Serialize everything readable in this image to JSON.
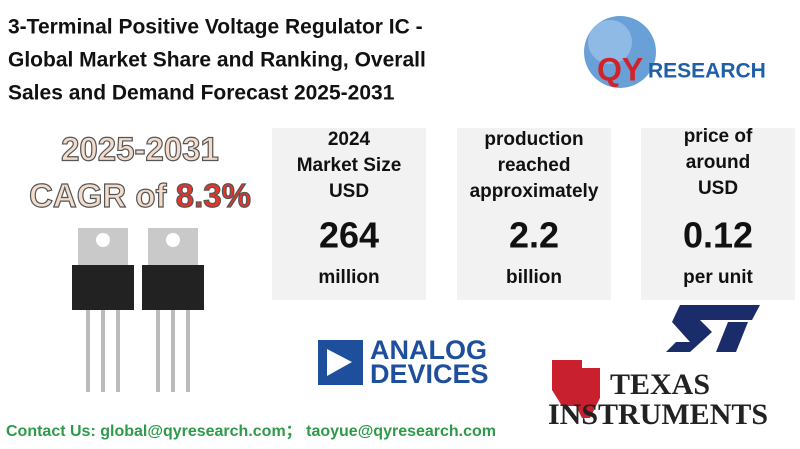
{
  "header": {
    "title_lines": [
      "3-Terminal Positive Voltage Regulator IC -",
      "Global Market Share and Ranking, Overall",
      "Sales and Demand Forecast 2025-2031"
    ]
  },
  "logo": {
    "qy": "QY",
    "research": "RESEARCH"
  },
  "cagr": {
    "years": "2025-2031",
    "label": "CAGR of ",
    "value": "8.3%"
  },
  "stats": [
    {
      "lines": [
        "2024",
        "Market Size",
        "USD"
      ],
      "value": "264",
      "unit": "million"
    },
    {
      "lines": [
        "production",
        "reached",
        "approximately"
      ],
      "value": "2.2",
      "unit": "billion"
    },
    {
      "lines": [
        "price of",
        "around",
        "USD"
      ],
      "value": "0.12",
      "unit": "per  unit"
    }
  ],
  "brands": {
    "analog": [
      "ANALOG",
      "DEVICES"
    ],
    "ti": [
      "TEXAS",
      "INSTRUMENTS"
    ]
  },
  "contact": "Contact Us: global@qyresearch.com； taoyue@qyresearch.com"
}
